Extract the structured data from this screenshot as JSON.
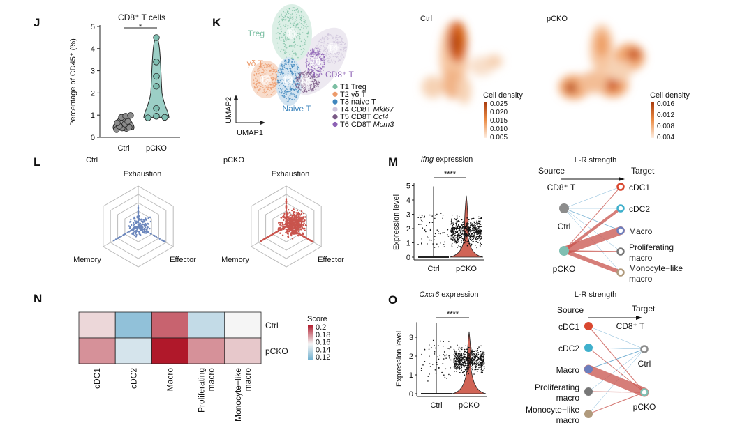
{
  "panels": {
    "J": "J",
    "K": "K",
    "L": "L",
    "M": "M",
    "N": "N",
    "O": "O"
  },
  "colors": {
    "ctrl_gray": "#8c8c8c",
    "pcko_teal": "#7fbfb2",
    "ctrl_blue": "#6c87bd",
    "pcko_red": "#c9544d",
    "density_low": "#fbe7d6",
    "density_high": "#a83a0c",
    "heat_low": "#74b2d1",
    "heat_mid": "#f5f5f5",
    "heat_high": "#b0182a",
    "edge_ctrl": "#6aaad0",
    "edge_pcko": "#c9544d"
  },
  "chart_data": [
    {
      "id": "J",
      "type": "violin",
      "title": "CD8⁺ T cells",
      "ylabel": "Percentage of CD45⁺ (%)",
      "categories": [
        "Ctrl",
        "pCKO"
      ],
      "ylim": [
        0,
        5
      ],
      "yticks": [
        "0",
        "1",
        "2",
        "3",
        "4",
        "5"
      ],
      "series": [
        {
          "name": "Ctrl",
          "values": [
            0.35,
            0.4,
            0.42,
            0.45,
            0.5,
            0.6,
            0.65,
            0.72,
            0.9,
            0.95,
            0.98
          ]
        },
        {
          "name": "pCKO",
          "values": [
            4.5,
            3.4,
            2.75,
            2.3,
            1.3,
            0.95,
            0.95,
            0.9,
            0.88
          ]
        }
      ],
      "significance": "*"
    },
    {
      "id": "K",
      "type": "scatter",
      "xlabel": "UMAP1",
      "ylabel": "UMAP2",
      "cluster_labels": [
        "T1",
        "T2",
        "T3",
        "T4",
        "T5",
        "T6"
      ],
      "annotations": [
        "Treg",
        "γδ T",
        "Naive T",
        "CD8⁺ T"
      ],
      "legend": [
        {
          "prefix": "T1 Treg",
          "italic": "",
          "color": "#7cbfa3"
        },
        {
          "prefix": "T2 γδ T",
          "italic": "",
          "color": "#ec9a6a"
        },
        {
          "prefix": "T3 naive T",
          "italic": "",
          "color": "#3f86bd"
        },
        {
          "prefix": "T4 CD8T ",
          "italic": "Mki67",
          "color": "#cfc5dc"
        },
        {
          "prefix": "T5 CD8T ",
          "italic": "Ccl4",
          "color": "#7a5a86"
        },
        {
          "prefix": "T6 CD8T ",
          "italic": "Mcm3",
          "color": "#8d62b5"
        }
      ],
      "legend_placement": "right"
    },
    {
      "id": "K-density",
      "type": "heatmap",
      "panels": [
        {
          "title": "Ctrl",
          "legend_title": "Cell density",
          "ticks": [
            "0.025",
            "0.020",
            "0.015",
            "0.010",
            "0.005"
          ]
        },
        {
          "title": "pCKO",
          "legend_title": "Cell density",
          "ticks": [
            "0.016",
            "0.012",
            "0.008",
            "0.004"
          ]
        }
      ]
    },
    {
      "id": "L",
      "type": "scatter",
      "subtype": "radar",
      "axes": [
        "Exhaustion",
        "Effector",
        "Memory"
      ],
      "panels": [
        {
          "title": "Ctrl",
          "color": "#6c87bd"
        },
        {
          "title": "pCKO",
          "color": "#c9544d"
        }
      ]
    },
    {
      "id": "M-violin",
      "type": "violin",
      "title_italic": "Ifng",
      "title_rest": " expression",
      "ylabel": "Expression level",
      "categories": [
        "Ctrl",
        "pCKO"
      ],
      "ylim": [
        0,
        5.2
      ],
      "yticks": [
        "0",
        "1",
        "2",
        "3",
        "4",
        "5"
      ],
      "significance": "****"
    },
    {
      "id": "M-network",
      "type": "network",
      "title": "L-R strength",
      "source_header": "Source",
      "target_header": "Target",
      "source_group": "CD8⁺ T",
      "sources": [
        {
          "label": "Ctrl",
          "color": "#8c8c8c"
        },
        {
          "label": "pCKO",
          "color": "#7fbfb2"
        }
      ],
      "targets": [
        {
          "label": [
            "cDC1"
          ],
          "color": "#d9472f"
        },
        {
          "label": [
            "cDC2"
          ],
          "color": "#3fb0cc"
        },
        {
          "label": [
            "Macro"
          ],
          "color": "#6c7ebd"
        },
        {
          "label": [
            "Proliferating",
            "macro"
          ],
          "color": "#777777"
        },
        {
          "label": [
            "Monocyte−like",
            "macro"
          ],
          "color": "#b09a7c"
        }
      ],
      "edges": [
        {
          "from": 0,
          "to": 0,
          "strength": 0.5
        },
        {
          "from": 0,
          "to": 1,
          "strength": 0.5
        },
        {
          "from": 0,
          "to": 2,
          "strength": 0.8
        },
        {
          "from": 0,
          "to": 3,
          "strength": 0.5
        },
        {
          "from": 0,
          "to": 4,
          "strength": 0.5
        },
        {
          "from": 1,
          "to": 0,
          "strength": 1
        },
        {
          "from": 1,
          "to": 1,
          "strength": 4
        },
        {
          "from": 1,
          "to": 2,
          "strength": 12
        },
        {
          "from": 1,
          "to": 3,
          "strength": 1.5
        },
        {
          "from": 1,
          "to": 4,
          "strength": 6
        }
      ]
    },
    {
      "id": "N",
      "type": "heatmap",
      "columns": [
        [
          "cDC1"
        ],
        [
          "cDC2"
        ],
        [
          "Macro"
        ],
        [
          "Proliferating",
          "macro"
        ],
        [
          "Monocyte−like",
          "macro"
        ]
      ],
      "rows": [
        "Ctrl",
        "pCKO"
      ],
      "values": [
        [
          0.162,
          0.128,
          0.185,
          0.142,
          0.156
        ],
        [
          0.176,
          0.147,
          0.2,
          0.176,
          0.165
        ]
      ],
      "legend_title": "Score",
      "legend_ticks": [
        "0.2",
        "0.18",
        "0.16",
        "0.14",
        "0.12"
      ],
      "range": [
        0.12,
        0.2
      ]
    },
    {
      "id": "O-violin",
      "type": "violin",
      "title_italic": "Cxcr6",
      "title_rest": " expression",
      "ylabel": "Expression level",
      "categories": [
        "Ctrl",
        "pCKO"
      ],
      "ylim": [
        0,
        3.8
      ],
      "yticks": [
        "0",
        "1",
        "2",
        "3"
      ],
      "significance": "****"
    },
    {
      "id": "O-network",
      "type": "network",
      "title": "L-R strength",
      "source_header": "Source",
      "target_header": "Target",
      "target_group": "CD8⁺ T",
      "sources": [
        {
          "label": [
            "cDC1"
          ],
          "color": "#d9472f"
        },
        {
          "label": [
            "cDC2"
          ],
          "color": "#3fb0cc"
        },
        {
          "label": [
            "Macro"
          ],
          "color": "#6c7ebd"
        },
        {
          "label": [
            "Proliferating",
            "macro"
          ],
          "color": "#777777"
        },
        {
          "label": [
            "Monocyte−like",
            "macro"
          ],
          "color": "#b09a7c"
        }
      ],
      "targets": [
        {
          "label": "Ctrl",
          "color": "#8c8c8c"
        },
        {
          "label": "pCKO",
          "color": "#7fbfb2"
        }
      ],
      "edges": [
        {
          "from": 0,
          "to": 0,
          "strength": 0.5,
          "group": "ctrl"
        },
        {
          "from": 1,
          "to": 0,
          "strength": 0.5,
          "group": "ctrl"
        },
        {
          "from": 2,
          "to": 0,
          "strength": 1,
          "group": "ctrl"
        },
        {
          "from": 3,
          "to": 0,
          "strength": 0.5,
          "group": "ctrl"
        },
        {
          "from": 4,
          "to": 0,
          "strength": 0.5,
          "group": "ctrl"
        },
        {
          "from": 0,
          "to": 1,
          "strength": 1.2,
          "group": "pcko"
        },
        {
          "from": 1,
          "to": 1,
          "strength": 1,
          "group": "pcko"
        },
        {
          "from": 2,
          "to": 1,
          "strength": 13,
          "group": "pcko"
        },
        {
          "from": 3,
          "to": 1,
          "strength": 1.2,
          "group": "pcko"
        },
        {
          "from": 4,
          "to": 1,
          "strength": 1.2,
          "group": "pcko"
        }
      ]
    }
  ]
}
